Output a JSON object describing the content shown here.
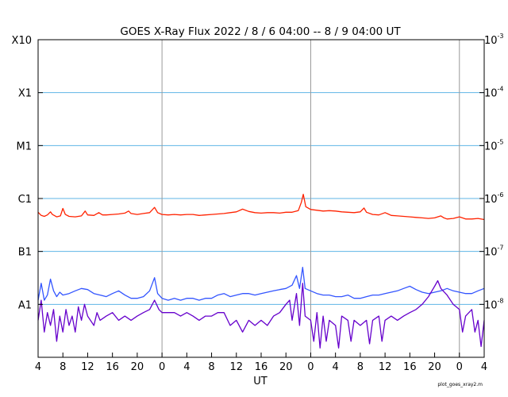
{
  "chart_data": {
    "type": "line",
    "title": "GOES X-Ray Flux   2022 /  8 /  6   04:00 --  8 /  9   04:00   UT",
    "xlabel": "UT",
    "footer": "plot_goes_xray2.m",
    "x_range_hours": [
      0,
      72
    ],
    "x_ticks": [
      {
        "h": 0,
        "label": "4"
      },
      {
        "h": 4,
        "label": "8"
      },
      {
        "h": 8,
        "label": "12"
      },
      {
        "h": 12,
        "label": "16"
      },
      {
        "h": 16,
        "label": "20"
      },
      {
        "h": 20,
        "label": "0"
      },
      {
        "h": 24,
        "label": "4"
      },
      {
        "h": 28,
        "label": "8"
      },
      {
        "h": 32,
        "label": "12"
      },
      {
        "h": 36,
        "label": "16"
      },
      {
        "h": 40,
        "label": "20"
      },
      {
        "h": 44,
        "label": "0"
      },
      {
        "h": 48,
        "label": "4"
      },
      {
        "h": 52,
        "label": "8"
      },
      {
        "h": 56,
        "label": "12"
      },
      {
        "h": 60,
        "label": "16"
      },
      {
        "h": 64,
        "label": "20"
      },
      {
        "h": 68,
        "label": "0"
      },
      {
        "h": 72,
        "label": "4"
      }
    ],
    "day_boundaries_hours": [
      20,
      44,
      68
    ],
    "y_scale": "log",
    "y_range": [
      1e-09,
      0.001
    ],
    "y_left_ticks": [
      {
        "v": 0.001,
        "label": "X10"
      },
      {
        "v": 0.0001,
        "label": "X1"
      },
      {
        "v": 1e-05,
        "label": "M1"
      },
      {
        "v": 1e-06,
        "label": "C1"
      },
      {
        "v": 1e-07,
        "label": "B1"
      },
      {
        "v": 1e-08,
        "label": "A1"
      }
    ],
    "y_right_ticks": [
      {
        "v": 0.001,
        "base": "10",
        "exp": "-3"
      },
      {
        "v": 0.0001,
        "base": "10",
        "exp": "-4"
      },
      {
        "v": 1e-05,
        "base": "10",
        "exp": "-5"
      },
      {
        "v": 1e-06,
        "base": "10",
        "exp": "-6"
      },
      {
        "v": 1e-07,
        "base": "10",
        "exp": "-7"
      },
      {
        "v": 1e-08,
        "base": "10",
        "exp": "-8"
      }
    ],
    "grid_levels": [
      0.0001,
      1e-05,
      1e-06,
      1e-07,
      1e-08
    ],
    "series": [
      {
        "color": "#ff2200",
        "points": [
          [
            0,
            5.5e-07
          ],
          [
            0.5,
            4.8e-07
          ],
          [
            1,
            4.6e-07
          ],
          [
            1.5,
            4.9e-07
          ],
          [
            2,
            5.6e-07
          ],
          [
            2.3,
            5e-07
          ],
          [
            3,
            4.5e-07
          ],
          [
            3.6,
            4.7e-07
          ],
          [
            4,
            6.5e-07
          ],
          [
            4.4,
            5e-07
          ],
          [
            5,
            4.6e-07
          ],
          [
            6,
            4.5e-07
          ],
          [
            7,
            4.7e-07
          ],
          [
            7.6,
            5.8e-07
          ],
          [
            8,
            4.9e-07
          ],
          [
            9,
            4.8e-07
          ],
          [
            9.8,
            5.4e-07
          ],
          [
            10.4,
            4.9e-07
          ],
          [
            11,
            4.9e-07
          ],
          [
            12,
            5e-07
          ],
          [
            13,
            5.1e-07
          ],
          [
            14,
            5.3e-07
          ],
          [
            14.6,
            5.8e-07
          ],
          [
            15,
            5.2e-07
          ],
          [
            16,
            5e-07
          ],
          [
            17,
            5.2e-07
          ],
          [
            18,
            5.4e-07
          ],
          [
            18.8,
            6.8e-07
          ],
          [
            19.3,
            5.4e-07
          ],
          [
            20,
            5e-07
          ],
          [
            21,
            4.9e-07
          ],
          [
            22,
            5e-07
          ],
          [
            23,
            4.9e-07
          ],
          [
            24,
            5e-07
          ],
          [
            25,
            5e-07
          ],
          [
            26,
            4.8e-07
          ],
          [
            27,
            4.9e-07
          ],
          [
            28,
            5e-07
          ],
          [
            29,
            5.1e-07
          ],
          [
            30,
            5.2e-07
          ],
          [
            31,
            5.4e-07
          ],
          [
            32,
            5.6e-07
          ],
          [
            33,
            6.3e-07
          ],
          [
            34,
            5.7e-07
          ],
          [
            35,
            5.4e-07
          ],
          [
            36,
            5.3e-07
          ],
          [
            37,
            5.4e-07
          ],
          [
            38,
            5.4e-07
          ],
          [
            39,
            5.3e-07
          ],
          [
            40,
            5.5e-07
          ],
          [
            41,
            5.5e-07
          ],
          [
            42,
            5.9e-07
          ],
          [
            42.5,
            8.5e-07
          ],
          [
            42.8,
            1.2e-06
          ],
          [
            43.2,
            7e-07
          ],
          [
            44,
            6.2e-07
          ],
          [
            45,
            6e-07
          ],
          [
            46,
            5.8e-07
          ],
          [
            47,
            5.9e-07
          ],
          [
            48,
            5.8e-07
          ],
          [
            49,
            5.6e-07
          ],
          [
            50,
            5.5e-07
          ],
          [
            51,
            5.4e-07
          ],
          [
            52,
            5.6e-07
          ],
          [
            52.6,
            6.6e-07
          ],
          [
            53,
            5.5e-07
          ],
          [
            54,
            5e-07
          ],
          [
            55,
            4.9e-07
          ],
          [
            56,
            5.4e-07
          ],
          [
            56.5,
            5.1e-07
          ],
          [
            57,
            4.8e-07
          ],
          [
            58,
            4.7e-07
          ],
          [
            59,
            4.6e-07
          ],
          [
            60,
            4.5e-07
          ],
          [
            61,
            4.4e-07
          ],
          [
            62,
            4.3e-07
          ],
          [
            63,
            4.2e-07
          ],
          [
            64,
            4.3e-07
          ],
          [
            65,
            4.7e-07
          ],
          [
            65.5,
            4.3e-07
          ],
          [
            66,
            4.1e-07
          ],
          [
            67,
            4.2e-07
          ],
          [
            68,
            4.5e-07
          ],
          [
            69,
            4.1e-07
          ],
          [
            70,
            4.1e-07
          ],
          [
            71,
            4.2e-07
          ],
          [
            72,
            4e-07
          ]
        ]
      },
      {
        "color": "#3355ff",
        "points": [
          [
            0,
            1.2e-08
          ],
          [
            0.5,
            2.5e-08
          ],
          [
            1,
            1.2e-08
          ],
          [
            1.5,
            1.5e-08
          ],
          [
            2,
            3e-08
          ],
          [
            2.5,
            1.8e-08
          ],
          [
            3,
            1.4e-08
          ],
          [
            3.5,
            1.7e-08
          ],
          [
            4,
            1.5e-08
          ],
          [
            5,
            1.6e-08
          ],
          [
            6,
            1.8e-08
          ],
          [
            7,
            2e-08
          ],
          [
            8,
            1.9e-08
          ],
          [
            9,
            1.6e-08
          ],
          [
            10,
            1.5e-08
          ],
          [
            11,
            1.4e-08
          ],
          [
            12,
            1.6e-08
          ],
          [
            13,
            1.8e-08
          ],
          [
            14,
            1.5e-08
          ],
          [
            15,
            1.3e-08
          ],
          [
            16,
            1.3e-08
          ],
          [
            17,
            1.4e-08
          ],
          [
            18,
            1.8e-08
          ],
          [
            18.8,
            3.2e-08
          ],
          [
            19.3,
            1.6e-08
          ],
          [
            20,
            1.3e-08
          ],
          [
            21,
            1.2e-08
          ],
          [
            22,
            1.3e-08
          ],
          [
            23,
            1.2e-08
          ],
          [
            24,
            1.3e-08
          ],
          [
            25,
            1.3e-08
          ],
          [
            26,
            1.2e-08
          ],
          [
            27,
            1.3e-08
          ],
          [
            28,
            1.3e-08
          ],
          [
            29,
            1.5e-08
          ],
          [
            30,
            1.6e-08
          ],
          [
            31,
            1.4e-08
          ],
          [
            32,
            1.5e-08
          ],
          [
            33,
            1.6e-08
          ],
          [
            34,
            1.6e-08
          ],
          [
            35,
            1.5e-08
          ],
          [
            36,
            1.6e-08
          ],
          [
            37,
            1.7e-08
          ],
          [
            38,
            1.8e-08
          ],
          [
            39,
            1.9e-08
          ],
          [
            40,
            2e-08
          ],
          [
            41,
            2.3e-08
          ],
          [
            41.7,
            3.5e-08
          ],
          [
            42.2,
            2e-08
          ],
          [
            42.7,
            5e-08
          ],
          [
            43.1,
            2e-08
          ],
          [
            44,
            1.8e-08
          ],
          [
            45,
            1.6e-08
          ],
          [
            46,
            1.5e-08
          ],
          [
            47,
            1.5e-08
          ],
          [
            48,
            1.4e-08
          ],
          [
            49,
            1.4e-08
          ],
          [
            50,
            1.5e-08
          ],
          [
            51,
            1.3e-08
          ],
          [
            52,
            1.3e-08
          ],
          [
            53,
            1.4e-08
          ],
          [
            54,
            1.5e-08
          ],
          [
            55,
            1.5e-08
          ],
          [
            56,
            1.6e-08
          ],
          [
            57,
            1.7e-08
          ],
          [
            58,
            1.8e-08
          ],
          [
            59,
            2e-08
          ],
          [
            60,
            2.2e-08
          ],
          [
            61,
            1.9e-08
          ],
          [
            62,
            1.7e-08
          ],
          [
            63,
            1.6e-08
          ],
          [
            64,
            1.7e-08
          ],
          [
            65,
            1.8e-08
          ],
          [
            66,
            2e-08
          ],
          [
            67,
            1.8e-08
          ],
          [
            68,
            1.7e-08
          ],
          [
            69,
            1.6e-08
          ],
          [
            70,
            1.6e-08
          ],
          [
            71,
            1.8e-08
          ],
          [
            72,
            2e-08
          ]
        ]
      },
      {
        "color": "#6600cc",
        "points": [
          [
            0,
            5e-09
          ],
          [
            0.5,
            1.2e-08
          ],
          [
            1,
            3e-09
          ],
          [
            1.5,
            7e-09
          ],
          [
            2,
            4e-09
          ],
          [
            2.5,
            8e-09
          ],
          [
            3,
            2e-09
          ],
          [
            3.5,
            6e-09
          ],
          [
            4,
            3e-09
          ],
          [
            4.5,
            8e-09
          ],
          [
            5,
            4e-09
          ],
          [
            5.5,
            6e-09
          ],
          [
            6,
            3e-09
          ],
          [
            6.5,
            9e-09
          ],
          [
            7,
            5e-09
          ],
          [
            7.5,
            1e-08
          ],
          [
            8,
            6e-09
          ],
          [
            9,
            4e-09
          ],
          [
            9.5,
            7e-09
          ],
          [
            10,
            5e-09
          ],
          [
            11,
            6e-09
          ],
          [
            12,
            7e-09
          ],
          [
            13,
            5e-09
          ],
          [
            14,
            6e-09
          ],
          [
            15,
            5e-09
          ],
          [
            16,
            6e-09
          ],
          [
            17,
            7e-09
          ],
          [
            18,
            8e-09
          ],
          [
            18.8,
            1.2e-08
          ],
          [
            19.5,
            8e-09
          ],
          [
            20,
            7e-09
          ],
          [
            21,
            7e-09
          ],
          [
            22,
            7e-09
          ],
          [
            23,
            6e-09
          ],
          [
            24,
            7e-09
          ],
          [
            25,
            6e-09
          ],
          [
            26,
            5e-09
          ],
          [
            27,
            6e-09
          ],
          [
            28,
            6e-09
          ],
          [
            29,
            7e-09
          ],
          [
            30,
            7e-09
          ],
          [
            31,
            4e-09
          ],
          [
            32,
            5e-09
          ],
          [
            33,
            3e-09
          ],
          [
            34,
            5e-09
          ],
          [
            35,
            4e-09
          ],
          [
            36,
            5e-09
          ],
          [
            37,
            4e-09
          ],
          [
            38,
            6e-09
          ],
          [
            39,
            7e-09
          ],
          [
            40,
            1e-08
          ],
          [
            40.6,
            1.2e-08
          ],
          [
            41,
            5e-09
          ],
          [
            41.7,
            1.6e-08
          ],
          [
            42.2,
            4e-09
          ],
          [
            42.7,
            2.5e-08
          ],
          [
            43.1,
            6e-09
          ],
          [
            44,
            5e-09
          ],
          [
            44.5,
            2e-09
          ],
          [
            45,
            7e-09
          ],
          [
            45.5,
            1.5e-09
          ],
          [
            46,
            6e-09
          ],
          [
            46.5,
            2e-09
          ],
          [
            47,
            5e-09
          ],
          [
            48,
            4e-09
          ],
          [
            48.5,
            1.5e-09
          ],
          [
            49,
            6e-09
          ],
          [
            50,
            5e-09
          ],
          [
            50.5,
            2e-09
          ],
          [
            51,
            5e-09
          ],
          [
            52,
            4e-09
          ],
          [
            53,
            5e-09
          ],
          [
            53.5,
            1.8e-09
          ],
          [
            54,
            5e-09
          ],
          [
            55,
            6e-09
          ],
          [
            55.5,
            2e-09
          ],
          [
            56,
            5e-09
          ],
          [
            57,
            6e-09
          ],
          [
            58,
            5e-09
          ],
          [
            59,
            6e-09
          ],
          [
            60,
            7e-09
          ],
          [
            61,
            8e-09
          ],
          [
            62,
            1e-08
          ],
          [
            63,
            1.4e-08
          ],
          [
            64,
            2.2e-08
          ],
          [
            64.5,
            2.8e-08
          ],
          [
            65,
            2e-08
          ],
          [
            66,
            1.5e-08
          ],
          [
            67,
            1e-08
          ],
          [
            68,
            8e-09
          ],
          [
            68.5,
            3e-09
          ],
          [
            69,
            6e-09
          ],
          [
            70,
            8e-09
          ],
          [
            70.5,
            3e-09
          ],
          [
            71,
            5e-09
          ],
          [
            71.5,
            1.6e-09
          ],
          [
            72,
            5e-09
          ]
        ]
      }
    ]
  }
}
